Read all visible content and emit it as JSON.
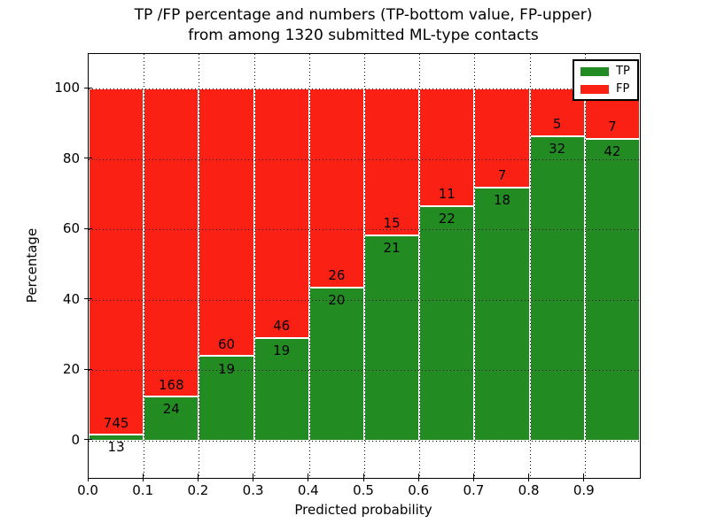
{
  "title": {
    "line1": "TP /FP percentage and numbers (TP-bottom value, FP-upper)",
    "line2": "from among 1320 submitted ML-type contacts"
  },
  "chart_data": {
    "type": "bar",
    "stacked": true,
    "subtitle_total": "1320",
    "x_bins": [
      0.0,
      0.1,
      0.2,
      0.3,
      0.4,
      0.5,
      0.6,
      0.7,
      0.8,
      0.9
    ],
    "bin_width": 0.1,
    "series": [
      {
        "name": "TP",
        "color": "#228c22",
        "values": [
          13,
          24,
          19,
          19,
          20,
          21,
          22,
          18,
          32,
          42
        ]
      },
      {
        "name": "FP",
        "color": "#fb2014",
        "values": [
          745,
          168,
          60,
          46,
          26,
          15,
          11,
          7,
          5,
          7
        ]
      }
    ],
    "value_display": "percent_of_bin_total",
    "xlabel": "Predicted probability",
    "ylabel": "Percentage",
    "xtick_labels": [
      "0.0",
      "0.1",
      "0.2",
      "0.3",
      "0.4",
      "0.5",
      "0.6",
      "0.7",
      "0.8",
      "0.9"
    ],
    "ytick_values": [
      0,
      20,
      40,
      60,
      80,
      100
    ],
    "xlim": [
      0.0,
      1.0
    ],
    "ylim": [
      -10.6,
      109.85
    ],
    "grid": "dotted",
    "grid_color": "#000000",
    "bar_edge_color": "#ffffff",
    "legend": {
      "position": "upper-right",
      "entries": [
        {
          "label": "TP",
          "color": "#228c22"
        },
        {
          "label": "FP",
          "color": "#fb2014"
        }
      ]
    }
  }
}
